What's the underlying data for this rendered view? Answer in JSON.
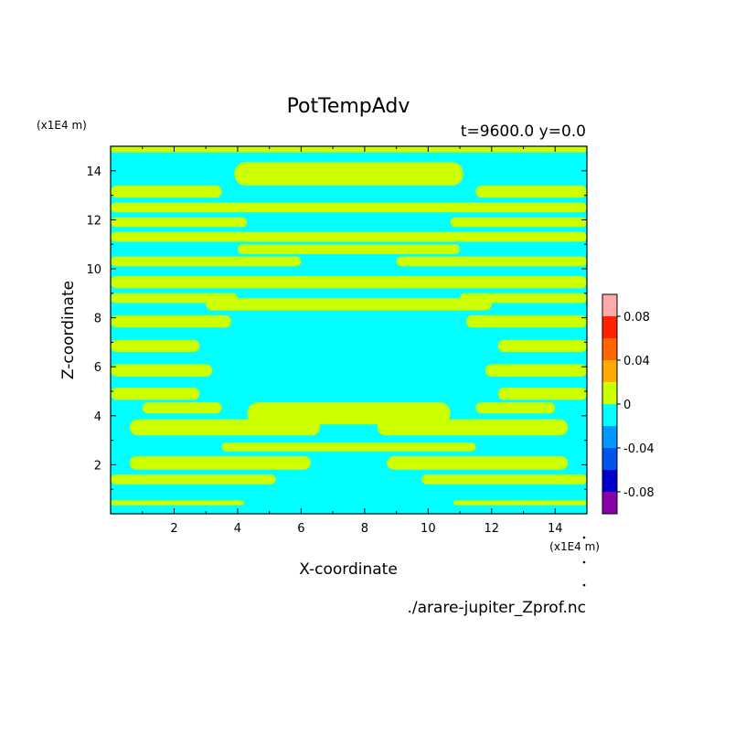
{
  "chart_data": {
    "type": "heatmap",
    "title": "PotTempAdv",
    "subtitle": "t=9600.0 y=0.0",
    "xlabel": "X-coordinate",
    "ylabel": "Z-coordinate",
    "x_unit": "(x1E4 m)",
    "y_unit": "(x1E4 m)",
    "source_file": "./arare-jupiter_Zprof.nc",
    "xlim": [
      0,
      15
    ],
    "ylim": [
      0,
      15
    ],
    "x_ticks": [
      "2",
      "4",
      "6",
      "8",
      "10",
      "12",
      "14"
    ],
    "y_ticks": [
      "2",
      "4",
      "6",
      "8",
      "10",
      "12",
      "14"
    ],
    "color_levels": [
      {
        "min": -0.1,
        "max": -0.08,
        "color": "#8800aa"
      },
      {
        "min": -0.08,
        "max": -0.06,
        "color": "#0000cc"
      },
      {
        "min": -0.06,
        "max": -0.04,
        "color": "#0055ee"
      },
      {
        "min": -0.04,
        "max": -0.02,
        "color": "#0099ff"
      },
      {
        "min": -0.02,
        "max": 0.0,
        "color": "#00ffff"
      },
      {
        "min": 0.0,
        "max": 0.02,
        "color": "#ccff00"
      },
      {
        "min": 0.02,
        "max": 0.04,
        "color": "#ffaa00"
      },
      {
        "min": 0.04,
        "max": 0.06,
        "color": "#ff6600"
      },
      {
        "min": 0.06,
        "max": 0.08,
        "color": "#ff2200"
      },
      {
        "min": 0.08,
        "max": 0.1,
        "color": "#ffaaaa"
      }
    ],
    "colorbar_labels": [
      "0.08",
      "0.04",
      "0",
      "-0.04",
      "-0.08"
    ],
    "field_description": "Field values are essentially confined to the two bins around zero: horizontal bands of slightly negative (cyan) and slightly positive (yellow-green) advection, symmetric about x=7.5.",
    "positive_bands": [
      {
        "z": [
          0.35,
          0.55
        ],
        "x": [
          0,
          4.2
        ]
      },
      {
        "z": [
          0.35,
          0.55
        ],
        "x": [
          10.8,
          15
        ]
      },
      {
        "z": [
          1.2,
          1.6
        ],
        "x": [
          0,
          5.2
        ]
      },
      {
        "z": [
          1.2,
          1.6
        ],
        "x": [
          9.8,
          15
        ]
      },
      {
        "z": [
          1.8,
          2.35
        ],
        "x": [
          0.6,
          6.3
        ]
      },
      {
        "z": [
          1.8,
          2.35
        ],
        "x": [
          8.7,
          14.4
        ]
      },
      {
        "z": [
          2.55,
          2.9
        ],
        "x": [
          3.5,
          11.5
        ]
      },
      {
        "z": [
          3.2,
          3.85
        ],
        "x": [
          0.6,
          6.6
        ]
      },
      {
        "z": [
          3.2,
          3.85
        ],
        "x": [
          8.4,
          14.4
        ]
      },
      {
        "z": [
          3.65,
          4.55
        ],
        "x": [
          4.3,
          10.7
        ]
      },
      {
        "z": [
          4.1,
          4.55
        ],
        "x": [
          1.0,
          3.5
        ]
      },
      {
        "z": [
          4.1,
          4.55
        ],
        "x": [
          11.5,
          14.0
        ]
      },
      {
        "z": [
          4.65,
          5.15
        ],
        "x": [
          0,
          2.8
        ]
      },
      {
        "z": [
          4.65,
          5.15
        ],
        "x": [
          12.2,
          15
        ]
      },
      {
        "z": [
          5.6,
          6.1
        ],
        "x": [
          0,
          3.2
        ]
      },
      {
        "z": [
          5.6,
          6.1
        ],
        "x": [
          11.8,
          15
        ]
      },
      {
        "z": [
          6.6,
          7.1
        ],
        "x": [
          0,
          2.8
        ]
      },
      {
        "z": [
          6.6,
          7.1
        ],
        "x": [
          12.2,
          15
        ]
      },
      {
        "z": [
          7.6,
          8.1
        ],
        "x": [
          0,
          3.8
        ]
      },
      {
        "z": [
          7.6,
          8.1
        ],
        "x": [
          11.2,
          15
        ]
      },
      {
        "z": [
          8.3,
          8.8
        ],
        "x": [
          3.0,
          12.0
        ]
      },
      {
        "z": [
          8.6,
          9.0
        ],
        "x": [
          0,
          4.0
        ]
      },
      {
        "z": [
          8.6,
          9.0
        ],
        "x": [
          11.0,
          15
        ]
      },
      {
        "z": [
          9.2,
          9.7
        ],
        "x": [
          0,
          15
        ]
      },
      {
        "z": [
          10.1,
          10.5
        ],
        "x": [
          0,
          6.0
        ]
      },
      {
        "z": [
          10.1,
          10.5
        ],
        "x": [
          9.0,
          15
        ]
      },
      {
        "z": [
          10.6,
          11.0
        ],
        "x": [
          4.0,
          11.0
        ]
      },
      {
        "z": [
          11.1,
          11.5
        ],
        "x": [
          0,
          15
        ]
      },
      {
        "z": [
          11.7,
          12.1
        ],
        "x": [
          0,
          4.3
        ]
      },
      {
        "z": [
          11.7,
          12.1
        ],
        "x": [
          10.7,
          15
        ]
      },
      {
        "z": [
          12.3,
          12.7
        ],
        "x": [
          0,
          15
        ]
      },
      {
        "z": [
          12.9,
          13.4
        ],
        "x": [
          0,
          3.5
        ]
      },
      {
        "z": [
          12.9,
          13.4
        ],
        "x": [
          11.5,
          15
        ]
      },
      {
        "z": [
          13.4,
          14.35
        ],
        "x": [
          3.9,
          11.1
        ]
      },
      {
        "z": [
          14.75,
          15.0
        ],
        "x": [
          0,
          15
        ]
      }
    ],
    "negative_regions": [
      {
        "shape": "dome",
        "x": [
          6.1,
          9.0
        ],
        "z": [
          0,
          2.45
        ]
      }
    ]
  }
}
